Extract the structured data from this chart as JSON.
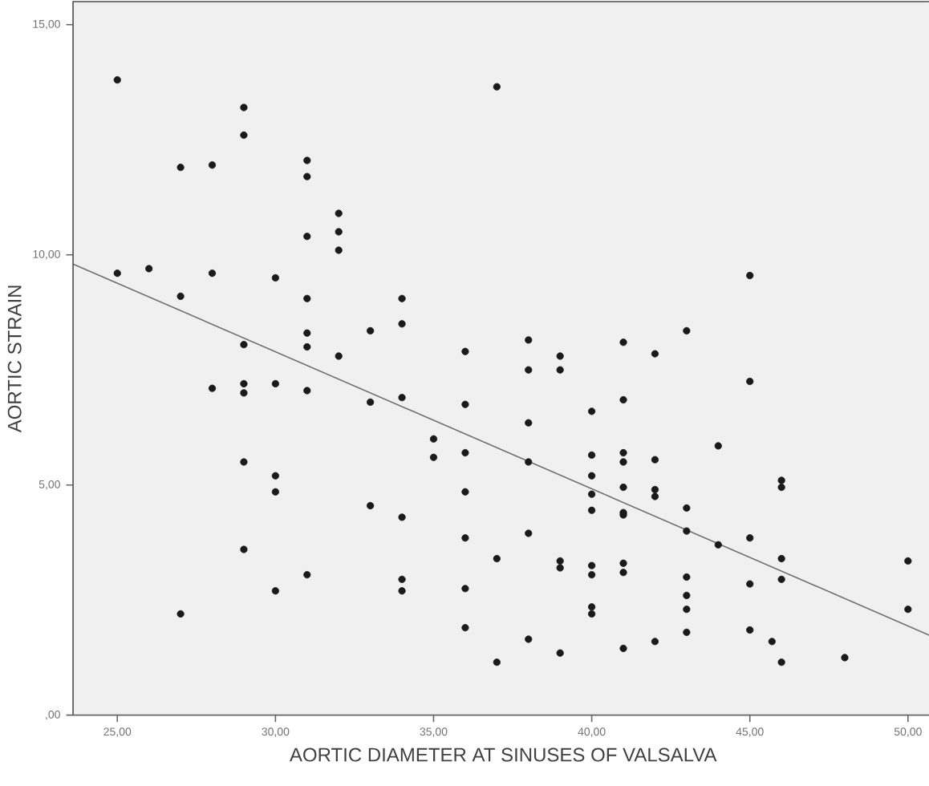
{
  "chart_data": {
    "type": "scatter",
    "xlabel": "AORTIC DIAMETER AT SINUSES OF VALSALVA",
    "ylabel": "AORTIC STRAIN",
    "xlim": [
      23.6,
      50.8
    ],
    "ylim": [
      0,
      15.5
    ],
    "xticks": [
      {
        "value": 25,
        "label": "25,00"
      },
      {
        "value": 30,
        "label": "30,00"
      },
      {
        "value": 35,
        "label": "35,00"
      },
      {
        "value": 40,
        "label": "40,00"
      },
      {
        "value": 45,
        "label": "45,00"
      },
      {
        "value": 50,
        "label": "50,00"
      }
    ],
    "yticks": [
      {
        "value": 0,
        "label": ",00"
      },
      {
        "value": 5,
        "label": "5,00"
      },
      {
        "value": 10,
        "label": "10,00"
      },
      {
        "value": 15,
        "label": "15,00"
      }
    ],
    "grid": false,
    "series": [
      {
        "color": "#1a1a1a",
        "marker": "circle",
        "x": [
          25,
          25,
          26,
          27,
          27,
          27,
          28,
          28,
          28,
          29,
          29,
          29,
          29,
          29,
          29,
          29,
          30,
          30,
          30,
          30,
          30,
          31,
          31,
          31,
          31,
          31,
          31,
          31,
          31,
          32,
          32,
          32,
          32,
          33,
          33,
          33,
          34,
          34,
          34,
          34,
          34,
          34,
          35,
          35,
          36,
          36,
          36,
          36,
          36,
          36,
          36,
          37,
          37,
          37,
          38,
          38,
          38,
          38,
          38,
          38,
          39,
          39,
          39,
          39,
          39,
          40,
          40,
          40,
          40,
          40,
          40,
          40,
          40,
          40,
          41,
          41,
          41,
          41,
          41,
          41,
          41,
          41,
          41,
          41,
          42,
          42,
          42,
          42,
          42,
          43,
          43,
          43,
          43,
          43,
          43,
          43,
          44,
          44,
          45,
          45,
          45,
          45,
          45,
          45.7,
          46,
          46,
          46,
          46,
          46,
          48,
          50,
          50
        ],
        "values": [
          13.8,
          9.6,
          9.7,
          11.9,
          9.1,
          2.2,
          11.95,
          9.6,
          7.1,
          13.2,
          12.6,
          8.05,
          7.2,
          7.0,
          5.5,
          3.6,
          9.5,
          7.2,
          5.2,
          4.85,
          2.7,
          12.05,
          11.7,
          10.4,
          9.05,
          8.3,
          8.0,
          7.05,
          3.05,
          10.9,
          10.5,
          10.1,
          7.8,
          8.35,
          6.8,
          4.55,
          9.05,
          8.5,
          6.9,
          4.3,
          2.95,
          2.7,
          6.0,
          5.6,
          7.9,
          6.75,
          5.7,
          4.85,
          3.85,
          2.75,
          1.9,
          13.65,
          3.4,
          1.15,
          8.15,
          7.5,
          6.35,
          5.5,
          3.95,
          1.65,
          7.8,
          7.5,
          3.35,
          3.2,
          1.35,
          6.6,
          5.65,
          5.2,
          4.8,
          4.45,
          3.25,
          3.05,
          2.35,
          2.2,
          8.1,
          6.85,
          5.7,
          5.5,
          4.95,
          4.4,
          4.35,
          3.3,
          3.1,
          1.45,
          7.85,
          5.55,
          4.9,
          4.75,
          1.6,
          8.35,
          4.5,
          4.0,
          3.0,
          2.6,
          2.3,
          1.8,
          5.85,
          3.7,
          9.55,
          7.25,
          3.85,
          2.85,
          1.85,
          1.6,
          5.1,
          4.95,
          3.4,
          2.95,
          1.15,
          1.25,
          3.35,
          2.3
        ]
      },
      {
        "type": "line",
        "color": "#707070",
        "x": [
          23.6,
          50.8
        ],
        "values": [
          9.8,
          1.7
        ]
      }
    ]
  }
}
